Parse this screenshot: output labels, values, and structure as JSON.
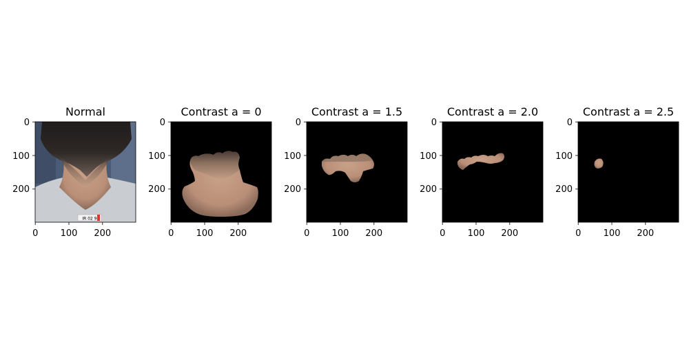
{
  "chart_data": [
    {
      "type": "image",
      "title": "Normal",
      "xticks": [
        "0",
        "100",
        "200"
      ],
      "yticks": [
        "0",
        "100",
        "200"
      ],
      "xlim": [
        0,
        299
      ],
      "ylim": [
        299,
        0
      ],
      "image": "photo of the back of a child's neck with dark hair above and a light grey shirt collar below; small label with handwritten text at bottom"
    },
    {
      "type": "image",
      "title": "Contrast a = 0",
      "xticks": [
        "0",
        "100",
        "200"
      ],
      "yticks": [
        "0",
        "100",
        "200"
      ],
      "xlim": [
        0,
        299
      ],
      "ylim": [
        299,
        0
      ],
      "image": "segmented skin region of the neck and upper back on black background"
    },
    {
      "type": "image",
      "title": "Contrast a = 1.5",
      "xticks": [
        "0",
        "100",
        "200"
      ],
      "yticks": [
        "0",
        "100",
        "200"
      ],
      "xlim": [
        0,
        299
      ],
      "ylim": [
        299,
        0
      ],
      "image": "smaller segmented band of skin on black background"
    },
    {
      "type": "image",
      "title": "Contrast a = 2.0",
      "xticks": [
        "0",
        "100",
        "200"
      ],
      "yticks": [
        "0",
        "100",
        "200"
      ],
      "xlim": [
        0,
        299
      ],
      "ylim": [
        299,
        0
      ],
      "image": "thin segmented strip of skin on black background"
    },
    {
      "type": "image",
      "title": "Contrast a = 2.5",
      "xticks": [
        "0",
        "100",
        "200"
      ],
      "yticks": [
        "0",
        "100",
        "200"
      ],
      "xlim": [
        0,
        299
      ],
      "ylim": [
        299,
        0
      ],
      "image": "tiny segmented blob of skin on black background"
    }
  ],
  "colors": {
    "black_background": "#000000",
    "skin": "#c79a80",
    "hair": "#2a2523",
    "shirt": "#c9ccd0",
    "wall": "#5d6f8a"
  }
}
